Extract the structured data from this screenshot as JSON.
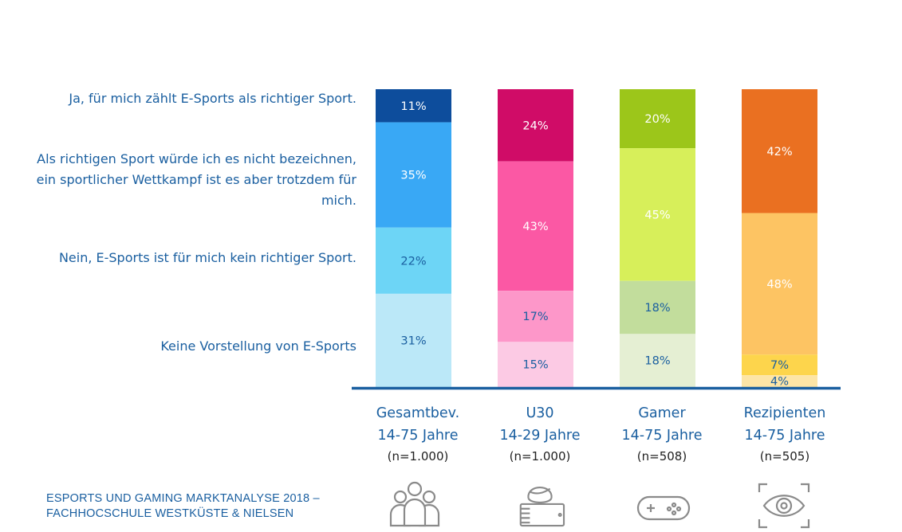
{
  "legend": [
    "Ja, für mich zählt E-Sports als richtiger Sport.",
    "Als richtigen Sport würde ich es nicht bezeichnen, ein sportlicher Wettkampf ist es aber trotzdem für mich.",
    "Nein, E-Sports ist für mich kein richtiger Sport.",
    "Keine Vorstellung von E-Sports"
  ],
  "groups": [
    {
      "line1": "Gesamtbev.",
      "line2": "14-75 Jahre",
      "n": "(n=1.000)",
      "icon": "group-icon"
    },
    {
      "line1": "U30",
      "line2": "14-29 Jahre",
      "n": "(n=1.000)",
      "icon": "tablet-user-icon"
    },
    {
      "line1": "Gamer",
      "line2": "14-75 Jahre",
      "n": "(n=508)",
      "icon": "gamepad-icon"
    },
    {
      "line1": "Rezipienten",
      "line2": "14-75 Jahre",
      "n": "(n=505)",
      "icon": "eye-icon"
    }
  ],
  "chart_data": {
    "type": "bar",
    "stacked": true,
    "categories": [
      "Gesamtbev. 14-75 Jahre",
      "U30 14-29 Jahre",
      "Gamer 14-75 Jahre",
      "Rezipienten 14-75 Jahre"
    ],
    "series": [
      {
        "name": "Ja, für mich zählt E-Sports als richtiger Sport.",
        "values": [
          11,
          24,
          20,
          42
        ],
        "labels": [
          "11%",
          "24%",
          "20%",
          "42%"
        ]
      },
      {
        "name": "Als richtigen Sport würde ich es nicht bezeichnen, ein sportlicher Wettkampf ist es aber trotzdem für mich.",
        "values": [
          35,
          43,
          45,
          48
        ],
        "labels": [
          "35%",
          "43%",
          "45%",
          "48%"
        ]
      },
      {
        "name": "Nein, E-Sports ist für mich kein richtiger Sport.",
        "values": [
          22,
          17,
          18,
          7
        ],
        "labels": [
          "22%",
          "17%",
          "18%",
          "7%"
        ]
      },
      {
        "name": "Keine Vorstellung von E-Sports",
        "values": [
          31,
          15,
          18,
          4
        ],
        "labels": [
          "31%",
          "15%",
          "18%",
          "4%"
        ]
      }
    ],
    "colors": [
      [
        "#0d4d9c",
        "#39a8f5",
        "#6dd5f6",
        "#bbe8f8"
      ],
      [
        "#d00c67",
        "#fb58a4",
        "#fd97c9",
        "#fccae4"
      ],
      [
        "#9cc61a",
        "#d7ef5a",
        "#c2dd9c",
        "#e5efd3"
      ],
      [
        "#ea7021",
        "#fdc463",
        "#fdd54c",
        "#fde5a6"
      ]
    ],
    "label_colors": [
      [
        "#ffffff",
        "#ffffff",
        "#1a5fa0",
        "#1a5fa0"
      ],
      [
        "#ffffff",
        "#ffffff",
        "#1a5fa0",
        "#1a5fa0"
      ],
      [
        "#ffffff",
        "#ffffff",
        "#1a5fa0",
        "#1a5fa0"
      ],
      [
        "#ffffff",
        "#ffffff",
        "#1a5fa0",
        "#1a5fa0"
      ]
    ],
    "axis_color": "#1a5fa0"
  },
  "source": {
    "line1": "ESPORTS UND GAMING MARKTANALYSE 2018 –",
    "line2": "FACHHOCSCHULE WESTKÜSTE & NIELSEN"
  }
}
